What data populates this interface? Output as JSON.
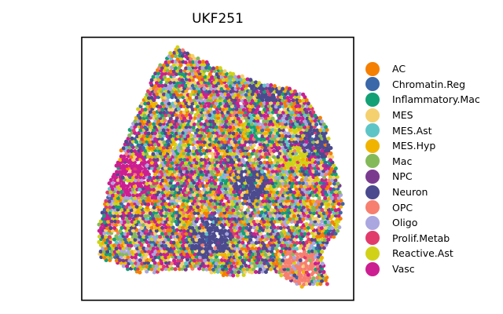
{
  "chart_data": {
    "type": "scatter",
    "title": "UKF251",
    "xlabel": "",
    "ylabel": "",
    "grid": false,
    "legend_position": "right",
    "axis_ticks": false,
    "categories": [
      {
        "name": "AC",
        "color": "#f57f00"
      },
      {
        "name": "Chromatin.Reg",
        "color": "#3a68a8"
      },
      {
        "name": "Inflammatory.Mac",
        "color": "#13a075"
      },
      {
        "name": "MES",
        "color": "#f4d06f"
      },
      {
        "name": "MES.Ast",
        "color": "#5ec5c7"
      },
      {
        "name": "MES.Hyp",
        "color": "#f0b400"
      },
      {
        "name": "Mac",
        "color": "#84b95a"
      },
      {
        "name": "NPC",
        "color": "#7a3b8f"
      },
      {
        "name": "Neuron",
        "color": "#4b4a8e"
      },
      {
        "name": "OPC",
        "color": "#f67f6f"
      },
      {
        "name": "Oligo",
        "color": "#aaa6e0"
      },
      {
        "name": "Prolif.Metab",
        "color": "#e13b6c"
      },
      {
        "name": "Reactive.Ast",
        "color": "#d1d218"
      },
      {
        "name": "Vasc",
        "color": "#cc1e90"
      }
    ],
    "tissue_outline": [
      [
        0.35,
        0.97
      ],
      [
        0.43,
        0.92
      ],
      [
        0.57,
        0.86
      ],
      [
        0.68,
        0.82
      ],
      [
        0.76,
        0.81
      ],
      [
        0.82,
        0.78
      ],
      [
        0.86,
        0.72
      ],
      [
        0.9,
        0.66
      ],
      [
        0.93,
        0.52
      ],
      [
        0.96,
        0.38
      ],
      [
        0.95,
        0.27
      ],
      [
        0.88,
        0.18
      ],
      [
        0.91,
        0.06
      ],
      [
        0.8,
        0.05
      ],
      [
        0.7,
        0.11
      ],
      [
        0.55,
        0.09
      ],
      [
        0.4,
        0.12
      ],
      [
        0.22,
        0.1
      ],
      [
        0.06,
        0.16
      ],
      [
        0.06,
        0.27
      ],
      [
        0.1,
        0.44
      ],
      [
        0.15,
        0.58
      ],
      [
        0.21,
        0.73
      ],
      [
        0.27,
        0.87
      ]
    ],
    "regions": [
      {
        "category": "Neuron",
        "center": [
          0.68,
          0.82
        ],
        "radius": 0.07
      },
      {
        "category": "Neuron",
        "center": [
          0.86,
          0.6
        ],
        "radius": 0.06
      },
      {
        "category": "Neuron",
        "center": [
          0.62,
          0.44
        ],
        "radius": 0.06
      },
      {
        "category": "Neuron",
        "center": [
          0.47,
          0.24
        ],
        "radius": 0.08
      },
      {
        "category": "OPC",
        "center": [
          0.8,
          0.13
        ],
        "radius": 0.07
      },
      {
        "category": "Vasc",
        "center": [
          0.18,
          0.48
        ],
        "radius": 0.09
      },
      {
        "category": "Reactive.Ast",
        "center": [
          0.79,
          0.54
        ],
        "radius": 0.05
      }
    ]
  }
}
